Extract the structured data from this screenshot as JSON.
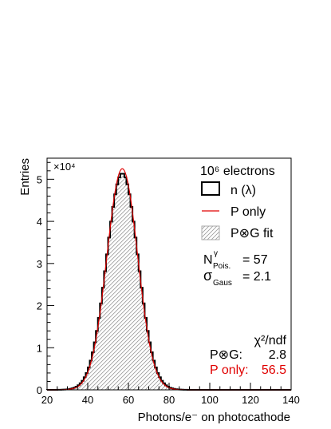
{
  "chart_data": {
    "type": "histogram",
    "xlabel": "Photons/e⁻ on photocathode",
    "ylabel": "Entries",
    "x_range": [
      20,
      140
    ],
    "y_range": [
      0,
      55000
    ],
    "x_ticks": [
      "20",
      "40",
      "60",
      "80",
      "100",
      "120",
      "140"
    ],
    "y_ticks": [
      "0",
      "1",
      "2",
      "3",
      "4",
      "5"
    ],
    "y_multiplier": "×10⁴",
    "grid": false,
    "legend_title": "10⁶ electrons",
    "legend_position": "top-right",
    "legend": [
      {
        "label": "n (λ)",
        "style": "black-box"
      },
      {
        "label": "P only",
        "style": "red-line"
      },
      {
        "label": "P⊗G fit",
        "style": "hatched-box"
      }
    ],
    "params": {
      "npois_label": "N",
      "npois_sup": "γ",
      "npois_sub": "Pois.",
      "npois_value": "= 57",
      "sigma_label": "σ",
      "sigma_sub": "Gaus",
      "sigma_value": "= 2.1"
    },
    "chi2": {
      "header": "χ²/ndf",
      "pg_label": "P⊗G:",
      "pg_value": "2.8",
      "ponly_label": "P only:",
      "ponly_value": "56.5"
    },
    "series": [
      {
        "name": "n (λ)",
        "kind": "histogram",
        "mean": 57,
        "sigma": 7.75,
        "peak": 51400,
        "color": "#000000"
      },
      {
        "name": "P only",
        "kind": "curve",
        "mean": 57,
        "sigma": 7.55,
        "peak": 52500,
        "color": "#e00000"
      },
      {
        "name": "P⊗G fit",
        "kind": "hatched-fill",
        "mean": 57,
        "sigma": 7.75,
        "peak": 51400,
        "color": "#aaaaaa"
      }
    ]
  }
}
